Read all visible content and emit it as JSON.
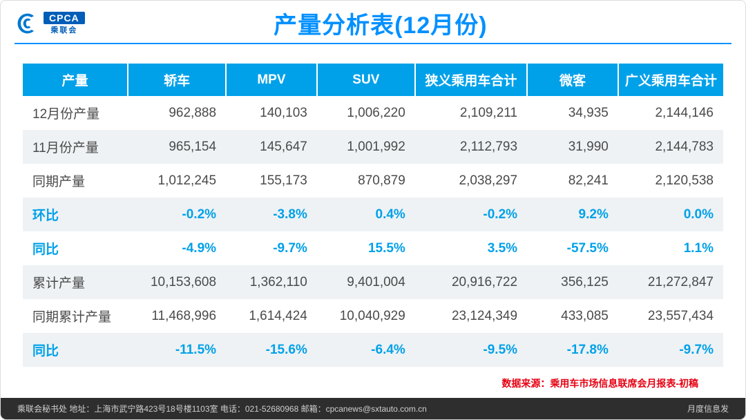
{
  "logo": {
    "cpca": "CPCA",
    "sub": "乘联会"
  },
  "title": "产量分析表(12月份)",
  "table": {
    "header_bg": "#00a1e9",
    "header_color": "#ffffff",
    "row_alt_bg": "#eef2f5",
    "ratio_color": "#00a1e9",
    "columns": [
      "产量",
      "轿车",
      "MPV",
      "SUV",
      "狭义乘用车合计",
      "微客",
      "广义乘用车合计"
    ],
    "col_widths": [
      "15%",
      "14%",
      "13%",
      "14%",
      "16%",
      "13%",
      "15%"
    ],
    "rows": [
      {
        "type": "data",
        "cells": [
          "12月份产量",
          "962,888",
          "140,103",
          "1,006,220",
          "2,109,211",
          "34,935",
          "2,144,146"
        ]
      },
      {
        "type": "data",
        "cells": [
          "11月份产量",
          "965,154",
          "145,647",
          "1,001,992",
          "2,112,793",
          "31,990",
          "2,144,783"
        ]
      },
      {
        "type": "data",
        "cells": [
          "同期产量",
          "1,012,245",
          "155,173",
          "870,879",
          "2,038,297",
          "82,241",
          "2,120,538"
        ]
      },
      {
        "type": "ratio",
        "cells": [
          "环比",
          "-0.2%",
          "-3.8%",
          "0.4%",
          "-0.2%",
          "9.2%",
          "0.0%"
        ]
      },
      {
        "type": "ratio",
        "cells": [
          "同比",
          "-4.9%",
          "-9.7%",
          "15.5%",
          "3.5%",
          "-57.5%",
          "1.1%"
        ]
      },
      {
        "type": "data",
        "cells": [
          "累计产量",
          "10,153,608",
          "1,362,110",
          "9,401,004",
          "20,916,722",
          "356,125",
          "21,272,847"
        ]
      },
      {
        "type": "data",
        "cells": [
          "同期累计产量",
          "11,468,996",
          "1,614,424",
          "10,040,929",
          "23,124,349",
          "433,085",
          "23,557,434"
        ]
      },
      {
        "type": "ratio",
        "cells": [
          "同比",
          "-11.5%",
          "-15.6%",
          "-6.4%",
          "-9.5%",
          "-17.8%",
          "-9.7%"
        ]
      }
    ]
  },
  "source": "数据来源：乘用车市场信息联席会月报表-初稿",
  "footer": {
    "left": "乘联会秘书处   地址：上海市武宁路423号18号楼1103室   电话：021-52680968   邮箱：cpcanews@sxtauto.com.cn",
    "right": "月度信息发"
  }
}
